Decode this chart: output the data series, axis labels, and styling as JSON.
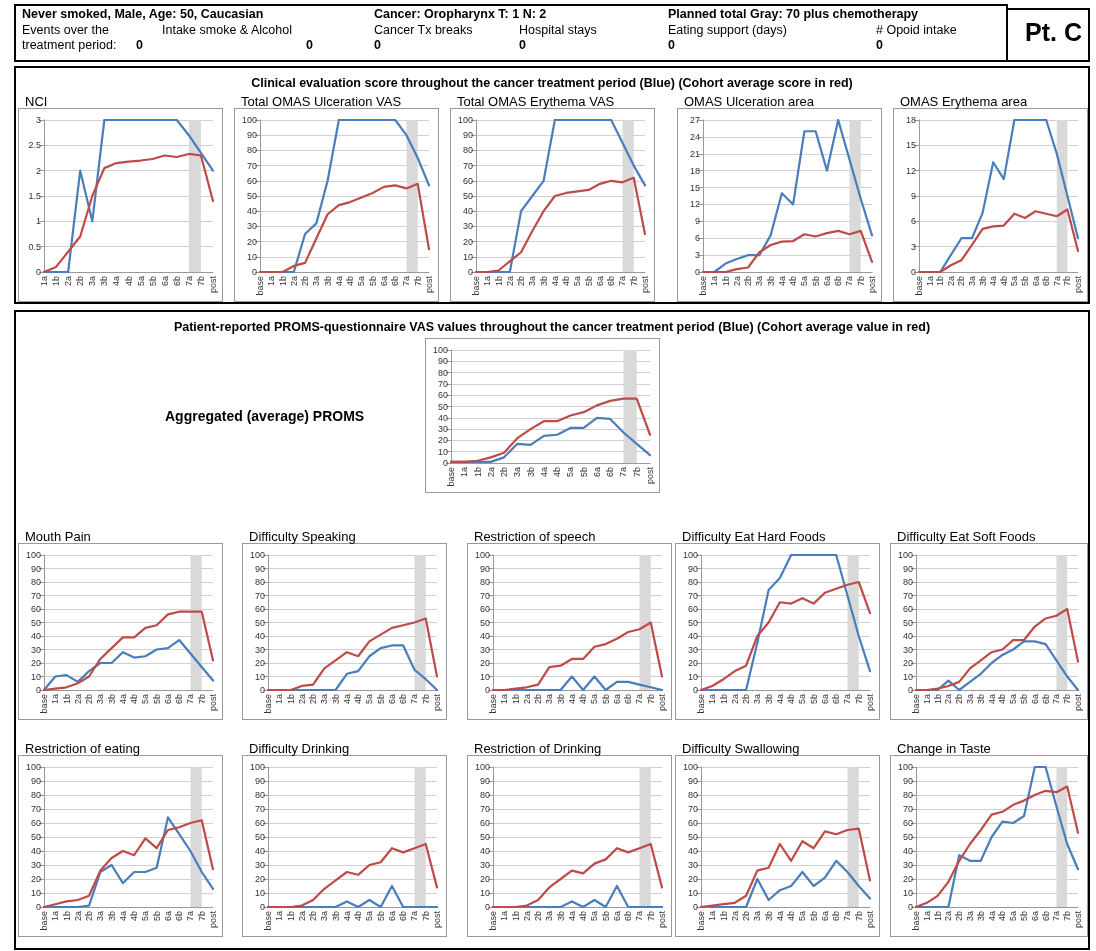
{
  "chart_data": [
    {
      "type": "other",
      "title": "Pt. C",
      "annotations": [
        "Never smoked, Male, Age: 50, Caucasian",
        "Cancer: Oropharynx T: 1 N: 2",
        "Planned total Gray: 70 plus chemotherapy",
        "Events over the",
        "treatment period:",
        "Intake smoke & Alcohol",
        "Cancer Tx breaks",
        "Hospital stays",
        "Eating support (days)",
        "# Opoid intake",
        "0",
        "0",
        "0",
        "0",
        "0",
        "0"
      ]
    },
    {
      "type": "other",
      "title": "Clinical evaluation score throughout the cancer treatment period (Blue) (Cohort average score in red)"
    },
    {
      "type": "line",
      "title": "NCI",
      "categories": [
        "1a",
        "1b",
        "2a",
        "2b",
        "3a",
        "3b",
        "4a",
        "4b",
        "5a",
        "5b",
        "6a",
        "6b",
        "7a",
        "7b",
        "post"
      ],
      "ylim": [
        0,
        3
      ],
      "yticks": [
        0,
        0.5,
        1,
        1.5,
        2,
        2.5,
        3
      ],
      "grid": "y",
      "marker": "none",
      "bands": [
        {
          "axis": "x",
          "from": "7a",
          "to": "7b",
          "color": "#d9d9d9"
        }
      ],
      "series": [
        {
          "color": "#4a7ebb",
          "values": [
            0,
            0,
            0,
            2,
            1,
            3,
            3,
            3,
            3,
            3,
            3,
            3,
            2.7,
            2.35,
            2
          ]
        },
        {
          "color": "#be4b48",
          "values": [
            0,
            0.1,
            0.4,
            0.7,
            1.5,
            2.05,
            2.15,
            2.18,
            2.2,
            2.23,
            2.3,
            2.27,
            2.33,
            2.3,
            1.4
          ]
        }
      ]
    },
    {
      "type": "line",
      "title": "Total OMAS Ulceration VAS",
      "categories": [
        "base",
        "1a",
        "1b",
        "2a",
        "2b",
        "3a",
        "3b",
        "4a",
        "4b",
        "5a",
        "5b",
        "6a",
        "6b",
        "7a",
        "7b",
        "post"
      ],
      "ylim": [
        0,
        100
      ],
      "yticks": [
        0,
        10,
        20,
        30,
        40,
        50,
        60,
        70,
        80,
        90,
        100
      ],
      "grid": "y",
      "marker": "none",
      "bands": [
        {
          "axis": "x",
          "from": "7a",
          "to": "7b",
          "color": "#d9d9d9"
        }
      ],
      "series": [
        {
          "color": "#4a7ebb",
          "values": [
            0,
            0,
            0,
            0,
            25,
            32,
            60,
            100,
            100,
            100,
            100,
            100,
            100,
            90,
            75,
            57
          ]
        },
        {
          "color": "#be4b48",
          "values": [
            0,
            0,
            0,
            4,
            6,
            22,
            38,
            44,
            46,
            49,
            52,
            56,
            57,
            55,
            58,
            15
          ]
        }
      ]
    },
    {
      "type": "line",
      "title": "Total OMAS Erythema VAS",
      "categories": [
        "base",
        "1a",
        "1b",
        "2a",
        "2b",
        "3a",
        "3b",
        "4a",
        "4b",
        "5a",
        "5b",
        "6a",
        "6b",
        "7a",
        "7b",
        "post"
      ],
      "ylim": [
        0,
        100
      ],
      "yticks": [
        0,
        10,
        20,
        30,
        40,
        50,
        60,
        70,
        80,
        90,
        100
      ],
      "grid": "y",
      "marker": "none",
      "bands": [
        {
          "axis": "x",
          "from": "7a",
          "to": "7b",
          "color": "#d9d9d9"
        }
      ],
      "series": [
        {
          "color": "#4a7ebb",
          "values": [
            0,
            0,
            0,
            0,
            40,
            50,
            60,
            100,
            100,
            100,
            100,
            100,
            100,
            85,
            70,
            57
          ]
        },
        {
          "color": "#be4b48",
          "values": [
            0,
            0,
            1,
            7,
            13,
            27,
            40,
            50,
            52,
            53,
            54,
            58,
            60,
            59,
            62,
            25
          ]
        }
      ]
    },
    {
      "type": "line",
      "title": "OMAS Ulceration area",
      "categories": [
        "base",
        "1a",
        "1b",
        "2a",
        "2b",
        "3a",
        "3b",
        "4a",
        "4b",
        "5a",
        "5b",
        "6a",
        "6b",
        "7a",
        "7b",
        "post"
      ],
      "ylim": [
        0,
        27
      ],
      "yticks": [
        0,
        3,
        6,
        9,
        12,
        15,
        18,
        21,
        24,
        27
      ],
      "grid": "y",
      "marker": "none",
      "bands": [
        {
          "axis": "x",
          "from": "7a",
          "to": "7b",
          "color": "#d9d9d9"
        }
      ],
      "series": [
        {
          "color": "#4a7ebb",
          "values": [
            0,
            0,
            1.5,
            2.3,
            3,
            3,
            6.5,
            14,
            12,
            25,
            25,
            18,
            27,
            20,
            13,
            6.5
          ]
        },
        {
          "color": "#be4b48",
          "values": [
            0,
            0,
            0,
            0.5,
            0.8,
            3.5,
            4.8,
            5.4,
            5.5,
            6.7,
            6.3,
            6.9,
            7.3,
            6.7,
            7.3,
            1.8
          ]
        }
      ]
    },
    {
      "type": "line",
      "title": "OMAS Erythema area",
      "categories": [
        "base",
        "1a",
        "1b",
        "2a",
        "2b",
        "3a",
        "3b",
        "4a",
        "4b",
        "5a",
        "5b",
        "6a",
        "6b",
        "7a",
        "7b",
        "post"
      ],
      "ylim": [
        0,
        18
      ],
      "yticks": [
        0,
        3,
        6,
        9,
        12,
        15,
        18
      ],
      "grid": "y",
      "marker": "none",
      "bands": [
        {
          "axis": "x",
          "from": "7a",
          "to": "7b",
          "color": "#d9d9d9"
        }
      ],
      "series": [
        {
          "color": "#4a7ebb",
          "values": [
            0,
            0,
            0,
            2,
            4,
            4,
            7,
            13,
            11,
            18,
            18,
            18,
            18,
            14,
            9,
            4
          ]
        },
        {
          "color": "#be4b48",
          "values": [
            0,
            0,
            0,
            0.8,
            1.4,
            3.2,
            5.1,
            5.4,
            5.5,
            6.9,
            6.4,
            7.2,
            6.9,
            6.6,
            7.4,
            2.5
          ]
        }
      ]
    },
    {
      "type": "other",
      "title": "Patient-reported PROMS-questionnaire VAS values throughout the cancer treatment period (Blue) (Cohort average value in red)"
    },
    {
      "type": "line",
      "title": "Aggregated (average) PROMS",
      "categories": [
        "base",
        "1a",
        "1b",
        "2a",
        "2b",
        "3a",
        "3b",
        "4a",
        "4b",
        "5a",
        "5b",
        "6a",
        "6b",
        "7a",
        "7b",
        "post"
      ],
      "ylim": [
        0,
        100
      ],
      "yticks": [
        0,
        10,
        20,
        30,
        40,
        50,
        60,
        70,
        80,
        90,
        100
      ],
      "grid": "y",
      "marker": "none",
      "bands": [
        {
          "axis": "x",
          "from": "7a",
          "to": "7b",
          "color": "#d9d9d9"
        }
      ],
      "series": [
        {
          "color": "#4a7ebb",
          "values": [
            1,
            1,
            1,
            1,
            5,
            17,
            16,
            24,
            25,
            31,
            31,
            40,
            39,
            27,
            17,
            7
          ]
        },
        {
          "color": "#be4b48",
          "values": [
            1,
            1,
            2,
            5,
            9,
            22,
            30,
            37,
            37,
            42,
            45,
            51,
            55,
            57,
            57,
            25
          ]
        }
      ]
    },
    {
      "type": "line",
      "title": "Mouth Pain",
      "categories": [
        "base",
        "1a",
        "1b",
        "2a",
        "2b",
        "3a",
        "3b",
        "4a",
        "4b",
        "5a",
        "5b",
        "6a",
        "6b",
        "7a",
        "7b",
        "post"
      ],
      "ylim": [
        0,
        100
      ],
      "yticks": [
        0,
        10,
        20,
        30,
        40,
        50,
        60,
        70,
        80,
        90,
        100
      ],
      "grid": "y",
      "marker": "none",
      "bands": [
        {
          "axis": "x",
          "from": "7a",
          "to": "7b",
          "color": "#d9d9d9"
        }
      ],
      "series": [
        {
          "color": "#4a7ebb",
          "values": [
            0,
            10,
            11,
            6,
            14,
            20,
            20,
            28,
            24,
            25,
            30,
            31,
            37,
            27,
            17,
            7
          ]
        },
        {
          "color": "#be4b48",
          "values": [
            0,
            1,
            2,
            5,
            10,
            23,
            31,
            39,
            39,
            46,
            48,
            56,
            58,
            58,
            58,
            22
          ]
        }
      ]
    },
    {
      "type": "line",
      "title": "Difficulty Speaking",
      "categories": [
        "base",
        "1a",
        "1b",
        "2a",
        "2b",
        "3a",
        "3b",
        "4a",
        "4b",
        "5a",
        "5b",
        "6a",
        "6b",
        "7a",
        "7b",
        "post"
      ],
      "ylim": [
        0,
        100
      ],
      "yticks": [
        0,
        10,
        20,
        30,
        40,
        50,
        60,
        70,
        80,
        90,
        100
      ],
      "grid": "y",
      "marker": "none",
      "bands": [
        {
          "axis": "x",
          "from": "7a",
          "to": "7b",
          "color": "#d9d9d9"
        }
      ],
      "series": [
        {
          "color": "#4a7ebb",
          "values": [
            0,
            0,
            0,
            0,
            0,
            0,
            0,
            12,
            14,
            25,
            31,
            33,
            33,
            15,
            8,
            0
          ]
        },
        {
          "color": "#be4b48",
          "values": [
            0,
            0,
            0,
            3,
            4,
            16,
            22,
            28,
            25,
            36,
            41,
            46,
            48,
            50,
            53,
            10
          ]
        }
      ]
    },
    {
      "type": "line",
      "title": "Restriction of speech",
      "categories": [
        "base",
        "1a",
        "1b",
        "2a",
        "2b",
        "3a",
        "3b",
        "4a",
        "4b",
        "5a",
        "5b",
        "6a",
        "6b",
        "7a",
        "7b",
        "post"
      ],
      "ylim": [
        0,
        100
      ],
      "yticks": [
        0,
        10,
        20,
        30,
        40,
        50,
        60,
        70,
        80,
        90,
        100
      ],
      "grid": "y",
      "marker": "none",
      "bands": [
        {
          "axis": "x",
          "from": "7a",
          "to": "7b",
          "color": "#d9d9d9"
        }
      ],
      "series": [
        {
          "color": "#4a7ebb",
          "values": [
            0,
            0,
            0,
            0,
            0,
            0,
            0,
            10,
            0,
            10,
            0,
            6,
            6,
            4,
            2,
            0
          ]
        },
        {
          "color": "#be4b48",
          "values": [
            0,
            0,
            1,
            2,
            4,
            17,
            18,
            23,
            23,
            32,
            34,
            38,
            43,
            45,
            50,
            10
          ]
        }
      ]
    },
    {
      "type": "line",
      "title": "Difficulty Eat Hard Foods",
      "categories": [
        "base",
        "1a",
        "1b",
        "2a",
        "2b",
        "3a",
        "3b",
        "4a",
        "4b",
        "5a",
        "5b",
        "6a",
        "6b",
        "7a",
        "7b",
        "post"
      ],
      "ylim": [
        0,
        100
      ],
      "yticks": [
        0,
        10,
        20,
        30,
        40,
        50,
        60,
        70,
        80,
        90,
        100
      ],
      "grid": "y",
      "marker": "none",
      "bands": [
        {
          "axis": "x",
          "from": "7a",
          "to": "7b",
          "color": "#d9d9d9"
        }
      ],
      "series": [
        {
          "color": "#4a7ebb",
          "values": [
            0,
            0,
            0,
            0,
            0,
            35,
            74,
            83,
            100,
            100,
            100,
            100,
            100,
            70,
            40,
            14
          ]
        },
        {
          "color": "#be4b48",
          "values": [
            0,
            3,
            8,
            14,
            18,
            40,
            50,
            65,
            64,
            68,
            64,
            72,
            75,
            78,
            80,
            57
          ]
        }
      ]
    },
    {
      "type": "line",
      "title": "Difficulty Eat Soft Foods",
      "categories": [
        "base",
        "1a",
        "1b",
        "2a",
        "2b",
        "3a",
        "3b",
        "4a",
        "4b",
        "5a",
        "5b",
        "6a",
        "6b",
        "7a",
        "7b",
        "post"
      ],
      "ylim": [
        0,
        100
      ],
      "yticks": [
        0,
        10,
        20,
        30,
        40,
        50,
        60,
        70,
        80,
        90,
        100
      ],
      "grid": "y",
      "marker": "none",
      "bands": [
        {
          "axis": "x",
          "from": "7a",
          "to": "7b",
          "color": "#d9d9d9"
        }
      ],
      "series": [
        {
          "color": "#4a7ebb",
          "values": [
            0,
            0,
            0,
            7,
            0,
            6,
            12,
            20,
            26,
            30,
            36,
            36,
            34,
            22,
            10,
            0
          ]
        },
        {
          "color": "#be4b48",
          "values": [
            0,
            0,
            1,
            3,
            6,
            16,
            22,
            28,
            30,
            37,
            37,
            47,
            53,
            55,
            60,
            21
          ]
        }
      ]
    },
    {
      "type": "line",
      "title": "Restriction of eating",
      "categories": [
        "base",
        "1a",
        "1b",
        "2a",
        "2b",
        "3a",
        "3b",
        "4a",
        "4b",
        "5a",
        "5b",
        "6a",
        "6b",
        "7a",
        "7b",
        "post"
      ],
      "ylim": [
        0,
        100
      ],
      "yticks": [
        0,
        10,
        20,
        30,
        40,
        50,
        60,
        70,
        80,
        90,
        100
      ],
      "grid": "y",
      "marker": "none",
      "bands": [
        {
          "axis": "x",
          "from": "7a",
          "to": "7b",
          "color": "#d9d9d9"
        }
      ],
      "series": [
        {
          "color": "#4a7ebb",
          "values": [
            0,
            0,
            0,
            0,
            1,
            25,
            30,
            17,
            25,
            25,
            28,
            64,
            52,
            40,
            25,
            13
          ]
        },
        {
          "color": "#be4b48",
          "values": [
            0,
            2,
            4,
            5,
            8,
            26,
            35,
            40,
            37,
            49,
            42,
            55,
            57,
            60,
            62,
            27
          ]
        }
      ]
    },
    {
      "type": "line",
      "title": "Difficulty Drinking",
      "categories": [
        "base",
        "1a",
        "1b",
        "2a",
        "2b",
        "3a",
        "3b",
        "4a",
        "4b",
        "5a",
        "5b",
        "6a",
        "6b",
        "7a",
        "7b",
        "post"
      ],
      "ylim": [
        0,
        100
      ],
      "yticks": [
        0,
        10,
        20,
        30,
        40,
        50,
        60,
        70,
        80,
        90,
        100
      ],
      "grid": "y",
      "marker": "none",
      "bands": [
        {
          "axis": "x",
          "from": "7a",
          "to": "7b",
          "color": "#d9d9d9"
        }
      ],
      "series": [
        {
          "color": "#4a7ebb",
          "values": [
            0,
            0,
            0,
            0,
            0,
            0,
            0,
            4,
            0,
            5,
            0,
            15,
            0,
            0,
            0,
            0
          ]
        },
        {
          "color": "#be4b48",
          "values": [
            0,
            0,
            0,
            1,
            5,
            13,
            19,
            25,
            23,
            30,
            32,
            42,
            39,
            42,
            45,
            14
          ]
        }
      ]
    },
    {
      "type": "line",
      "title": "Restriction of Drinking",
      "categories": [
        "base",
        "1a",
        "1b",
        "2a",
        "2b",
        "3a",
        "3b",
        "4a",
        "4b",
        "5a",
        "5b",
        "6a",
        "6b",
        "7a",
        "7b",
        "post"
      ],
      "ylim": [
        0,
        100
      ],
      "yticks": [
        0,
        10,
        20,
        30,
        40,
        50,
        60,
        70,
        80,
        90,
        100
      ],
      "grid": "y",
      "marker": "none",
      "bands": [
        {
          "axis": "x",
          "from": "7a",
          "to": "7b",
          "color": "#d9d9d9"
        }
      ],
      "series": [
        {
          "color": "#4a7ebb",
          "values": [
            0,
            0,
            0,
            0,
            0,
            0,
            0,
            4,
            0,
            5,
            0,
            15,
            0,
            0,
            0,
            0
          ]
        },
        {
          "color": "#be4b48",
          "values": [
            0,
            0,
            0,
            1,
            5,
            14,
            20,
            26,
            24,
            31,
            34,
            42,
            39,
            42,
            45,
            14
          ]
        }
      ]
    },
    {
      "type": "line",
      "title": "Difficulty Swallowing",
      "categories": [
        "base",
        "1a",
        "1b",
        "2a",
        "2b",
        "3a",
        "3b",
        "4a",
        "4b",
        "5a",
        "5b",
        "6a",
        "6b",
        "7a",
        "7b",
        "post"
      ],
      "ylim": [
        0,
        100
      ],
      "yticks": [
        0,
        10,
        20,
        30,
        40,
        50,
        60,
        70,
        80,
        90,
        100
      ],
      "grid": "y",
      "marker": "none",
      "bands": [
        {
          "axis": "x",
          "from": "7a",
          "to": "7b",
          "color": "#d9d9d9"
        }
      ],
      "series": [
        {
          "color": "#4a7ebb",
          "values": [
            0,
            0,
            0,
            0,
            0,
            20,
            5,
            12,
            15,
            25,
            15,
            21,
            33,
            25,
            15,
            6
          ]
        },
        {
          "color": "#be4b48",
          "values": [
            0,
            1,
            2,
            3,
            8,
            26,
            28,
            45,
            33,
            47,
            42,
            54,
            52,
            55,
            56,
            19
          ]
        }
      ]
    },
    {
      "type": "line",
      "title": "Change in Taste",
      "categories": [
        "base",
        "1a",
        "1b",
        "2a",
        "2b",
        "3a",
        "3b",
        "4a",
        "4b",
        "5a",
        "5b",
        "6a",
        "6b",
        "7a",
        "7b",
        "post"
      ],
      "ylim": [
        0,
        100
      ],
      "yticks": [
        0,
        10,
        20,
        30,
        40,
        50,
        60,
        70,
        80,
        90,
        100
      ],
      "grid": "y",
      "marker": "none",
      "bands": [
        {
          "axis": "x",
          "from": "7a",
          "to": "7b",
          "color": "#d9d9d9"
        }
      ],
      "series": [
        {
          "color": "#4a7ebb",
          "values": [
            0,
            0,
            0,
            0,
            37,
            33,
            33,
            50,
            61,
            60,
            65,
            100,
            100,
            72,
            45,
            27
          ]
        },
        {
          "color": "#be4b48",
          "values": [
            0,
            3,
            8,
            18,
            33,
            45,
            55,
            66,
            68,
            73,
            76,
            80,
            83,
            82,
            86,
            53
          ]
        }
      ]
    }
  ]
}
